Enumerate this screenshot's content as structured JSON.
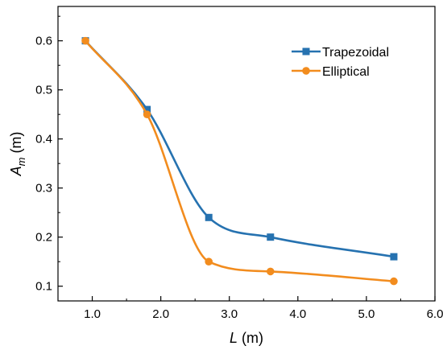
{
  "chart_data": {
    "type": "line",
    "xlabel": {
      "italic": "L",
      "rest": " (m)"
    },
    "ylabel": {
      "italic": "A",
      "sub": "m",
      "rest": " (m)"
    },
    "xlim": [
      0.5,
      6.0
    ],
    "ylim": [
      0.07,
      0.67
    ],
    "xticks": [
      1.0,
      2.0,
      3.0,
      4.0,
      5.0,
      6.0
    ],
    "xtick_labels": [
      "1.0",
      "2.0",
      "3.0",
      "4.0",
      "5.0",
      "6.0"
    ],
    "yticks": [
      0.1,
      0.2,
      0.3,
      0.4,
      0.5,
      0.6
    ],
    "ytick_labels": [
      "0.1",
      "0.2",
      "0.3",
      "0.4",
      "0.5",
      "0.6"
    ],
    "grid": false,
    "legend_position": "top-right",
    "series": [
      {
        "name": "Trapezoidal",
        "marker": "square",
        "color": "#2672b0",
        "x": [
          0.9,
          1.8,
          2.7,
          3.6,
          5.4
        ],
        "y": [
          0.6,
          0.46,
          0.24,
          0.2,
          0.16
        ]
      },
      {
        "name": "Elliptical",
        "marker": "circle",
        "color": "#f28c1e",
        "x": [
          0.9,
          1.8,
          2.7,
          3.6,
          5.4
        ],
        "y": [
          0.6,
          0.45,
          0.15,
          0.13,
          0.11
        ]
      }
    ]
  }
}
